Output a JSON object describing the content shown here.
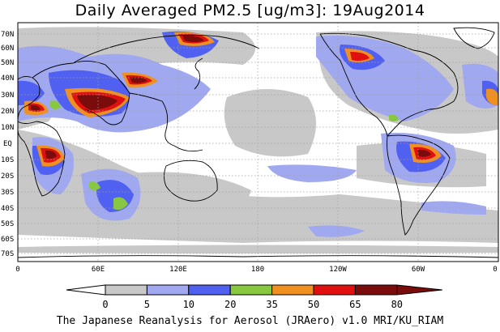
{
  "title": "Daily Averaged PM2.5 [ug/m3]: 19Aug2014",
  "credit": "The Japanese Reanalysis for Aerosol (JRAero) v1.0 MRI/KU_RIAM",
  "lat_labels": [
    "70N",
    "60N",
    "50N",
    "40N",
    "30N",
    "20N",
    "10N",
    "EQ",
    "10S",
    "20S",
    "30S",
    "40S",
    "50S",
    "60S",
    "70S"
  ],
  "lon_labels": [
    "0",
    "60E",
    "120E",
    "180",
    "120W",
    "60W",
    "0"
  ],
  "colorbar": {
    "levels": [
      "0",
      "5",
      "10",
      "20",
      "35",
      "50",
      "65",
      "80"
    ],
    "colors": [
      "#ffffff",
      "#c8c8c8",
      "#a0a8f0",
      "#5060f0",
      "#88c840",
      "#f09020",
      "#e01010",
      "#7a0c0c"
    ]
  }
}
